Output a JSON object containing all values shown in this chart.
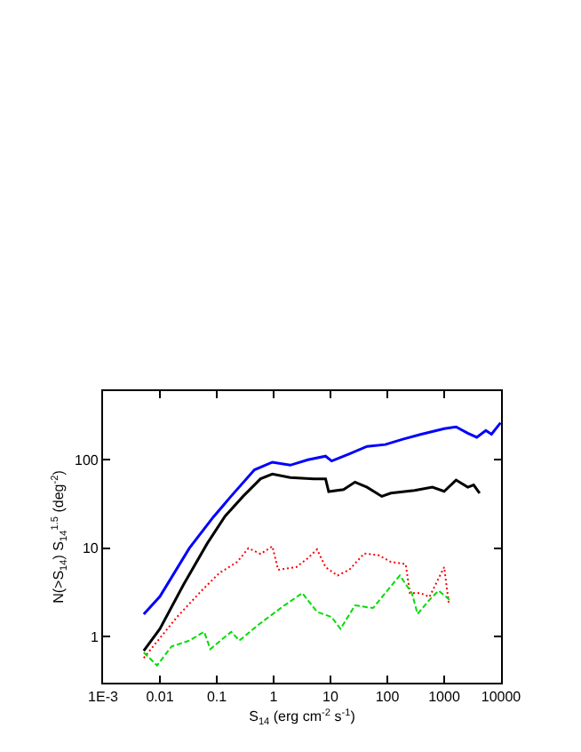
{
  "chart_data": {
    "type": "line",
    "xlabel": "S$_{14}$ (erg cm$^{-2}$ s$^{-1}$)",
    "ylabel": "N(>S$_{14}$) S$_{14}$$^{1.5}$ (deg$^{-2}$)",
    "log": "xy",
    "grid": false,
    "marker": "none",
    "xlim": [
      0.001,
      10000
    ],
    "xticks": [
      {
        "value": 0.001,
        "label": "1E-3"
      },
      0.01,
      0.1,
      1,
      10,
      100,
      1000,
      10000
    ],
    "ylim": [
      0.3,
      600
    ],
    "yticks": [
      1,
      10,
      100
    ],
    "series": [
      {
        "color": "#0000ff",
        "line_style": "solid",
        "x": [
          0.0052,
          0.01,
          0.033,
          0.087,
          0.178,
          0.46,
          0.95,
          1.96,
          4,
          8.2,
          10.5,
          21.5,
          44,
          92,
          187,
          383,
          1000,
          1620,
          2600,
          3740,
          5400,
          6800,
          9800
        ],
        "values": [
          1.79,
          2.84,
          10,
          22.5,
          38.6,
          77,
          94,
          87,
          100,
          110,
          97,
          117,
          142,
          149,
          171,
          194,
          225,
          236,
          200,
          180,
          215,
          195,
          263
        ]
      },
      {
        "color": "#000000",
        "line_style": "solid",
        "x": [
          0.0052,
          0.01,
          0.026,
          0.068,
          0.14,
          0.29,
          0.59,
          0.95,
          1.96,
          5.1,
          8.2,
          9.3,
          17,
          27,
          44,
          80,
          115,
          300,
          620,
          1000,
          1620,
          2600,
          3300,
          4200
        ],
        "values": [
          0.69,
          1.22,
          3.86,
          11.3,
          23,
          38.6,
          61,
          69,
          63,
          61,
          61,
          43.7,
          46,
          56,
          49,
          38.6,
          42,
          45,
          49,
          44,
          59,
          49,
          52,
          42
        ]
      },
      {
        "color": "#ff0000",
        "line_style": "dotted",
        "x": [
          0.0052,
          0.01,
          0.02,
          0.054,
          0.11,
          0.23,
          0.36,
          0.59,
          0.95,
          1.2,
          2.5,
          4,
          5.8,
          8.2,
          13.3,
          21.5,
          39,
          71,
          115,
          210,
          250,
          383,
          550,
          1000,
          1200
        ],
        "values": [
          0.57,
          0.96,
          1.66,
          3.3,
          5.2,
          7,
          10,
          8.6,
          10.5,
          5.7,
          6.1,
          7.7,
          9.7,
          6.1,
          4.9,
          5.7,
          8.7,
          8.3,
          7,
          6.6,
          3.1,
          3.1,
          2.8,
          6.1,
          2.4
        ]
      },
      {
        "color": "#00dd00",
        "line_style": "dashed",
        "x": [
          0.0052,
          0.0089,
          0.016,
          0.033,
          0.06,
          0.077,
          0.18,
          0.25,
          0.59,
          1.55,
          3.2,
          5.8,
          10.5,
          15,
          27,
          56,
          92,
          166,
          270,
          340,
          550,
          800,
          1250
        ],
        "values": [
          0.66,
          0.47,
          0.77,
          0.9,
          1.13,
          0.72,
          1.13,
          0.9,
          1.42,
          2.25,
          3.1,
          1.9,
          1.66,
          1.22,
          2.25,
          2.1,
          3.1,
          4.9,
          3.1,
          1.8,
          2.6,
          3.3,
          2.6
        ]
      }
    ]
  }
}
